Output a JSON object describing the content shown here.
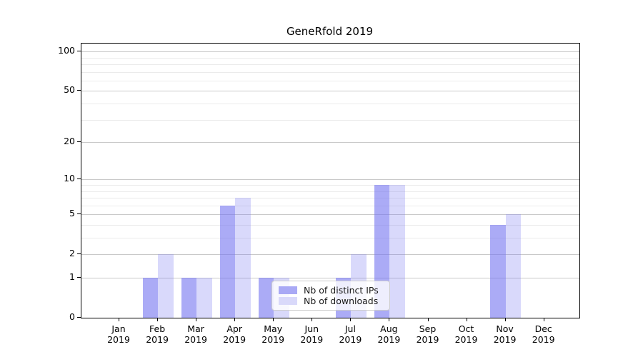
{
  "chart_data": {
    "type": "bar",
    "title": "GeneRfold 2019",
    "xlabel": "",
    "ylabel": "",
    "year_label": "2019",
    "categories": [
      "Jan",
      "Feb",
      "Mar",
      "Apr",
      "May",
      "Jun",
      "Jul",
      "Aug",
      "Sep",
      "Oct",
      "Nov",
      "Dec"
    ],
    "series": [
      {
        "name": "Nb of distinct IPs",
        "color": "rgba(120,120,240,0.62)",
        "legend_swatch": "#a9a9f5",
        "values": [
          0,
          1,
          1,
          6,
          1,
          0,
          1,
          9,
          0,
          0,
          4,
          0
        ]
      },
      {
        "name": "Nb of downloads",
        "color": "rgba(120,120,240,0.28)",
        "legend_swatch": "#d9d9fa",
        "values": [
          0,
          2,
          1,
          7,
          1,
          0,
          2,
          9,
          0,
          0,
          5,
          0
        ]
      }
    ],
    "y_axis": {
      "scale": "log(1+x)",
      "tick_values": [
        0,
        1,
        2,
        5,
        10,
        20,
        50,
        100
      ],
      "minor_gridlines": [
        3,
        4,
        6,
        7,
        8,
        9,
        30,
        40,
        60,
        70,
        80,
        90
      ],
      "ylim": [
        0,
        112
      ]
    },
    "x_axis": {
      "tick_labels_line2": "2019"
    },
    "legend": {
      "position": "lower-center",
      "items": [
        "Nb of distinct IPs",
        "Nb of downloads"
      ]
    },
    "grid": "horizontal",
    "colors": {
      "major_gridline": "#c9c9c9",
      "minor_gridline": "#ebebeb",
      "spine": "#000000",
      "text": "#000000"
    }
  }
}
